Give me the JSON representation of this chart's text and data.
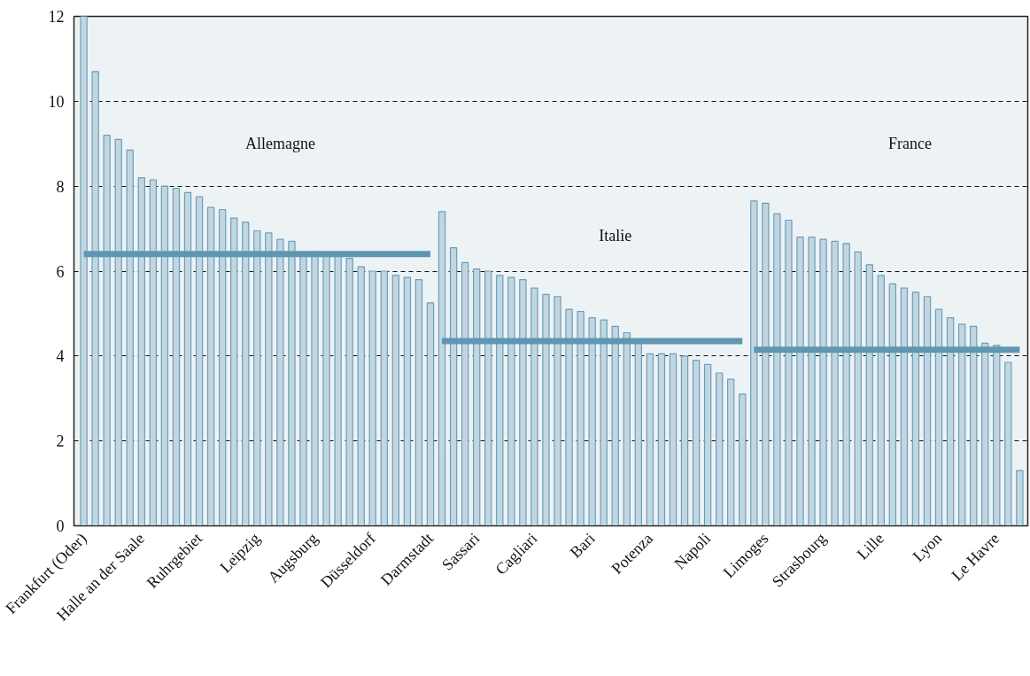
{
  "chart_data": {
    "type": "bar",
    "categories": [
      "Frankfurt (Oder)",
      null,
      null,
      null,
      null,
      "Halle an der Saale",
      null,
      null,
      null,
      null,
      "Ruhrgebiet",
      null,
      null,
      null,
      null,
      "Leipzig",
      null,
      null,
      null,
      null,
      "Augsburg",
      null,
      null,
      null,
      null,
      "Düsseldorf",
      null,
      null,
      null,
      null,
      "Darmstadt",
      null,
      null,
      null,
      "Sassari",
      null,
      null,
      null,
      null,
      "Cagliari",
      null,
      null,
      null,
      null,
      "Bari",
      null,
      null,
      null,
      null,
      "Potenza",
      null,
      null,
      null,
      null,
      "Napoli",
      null,
      null,
      null,
      null,
      "Limoges",
      null,
      null,
      null,
      null,
      "Strasbourg",
      null,
      null,
      null,
      null,
      "Lille",
      null,
      null,
      null,
      null,
      "Lyon",
      null,
      null,
      null,
      null,
      "Le Havre",
      null,
      null
    ],
    "series": [
      {
        "color": "#c2d6e2",
        "values": [
          12,
          10.7,
          9.2,
          9.1,
          8.85,
          8.2,
          8.15,
          8.0,
          7.95,
          7.85,
          7.75,
          7.5,
          7.45,
          7.25,
          7.15,
          6.95,
          6.9,
          6.75,
          6.7,
          6.45,
          6.45,
          6.4,
          6.35,
          6.3,
          6.1,
          6.0,
          6.0,
          5.9,
          5.85,
          5.8,
          5.25,
          7.4,
          6.55,
          6.2,
          6.05,
          6.0,
          5.9,
          5.85,
          5.8,
          5.6,
          5.45,
          5.4,
          5.1,
          5.05,
          4.9,
          4.85,
          4.7,
          4.55,
          4.3,
          4.05,
          4.05,
          4.05,
          4.0,
          3.9,
          3.8,
          3.6,
          3.45,
          3.1,
          7.65,
          7.6,
          7.35,
          7.2,
          6.8,
          6.8,
          6.75,
          6.7,
          6.65,
          6.45,
          6.15,
          5.9,
          5.7,
          5.6,
          5.5,
          5.4,
          5.1,
          4.9,
          4.75,
          4.7,
          4.3,
          4.25,
          3.85,
          1.3
        ]
      },
      {
        "type": "line",
        "color": "#5f96b1",
        "values": [
          6.4,
          6.4,
          6.4,
          6.4,
          6.4,
          6.4,
          6.4,
          6.4,
          6.4,
          6.4,
          6.4,
          6.4,
          6.4,
          6.4,
          6.4,
          6.4,
          6.4,
          6.4,
          6.4,
          6.4,
          6.4,
          6.4,
          6.4,
          6.4,
          6.4,
          6.4,
          6.4,
          6.4,
          6.4,
          6.4,
          6.4,
          null,
          null,
          null,
          null,
          null,
          null,
          null,
          null,
          null,
          null,
          null,
          null,
          null,
          null,
          null,
          null,
          null,
          null,
          null,
          null,
          null,
          null,
          null,
          null,
          null,
          null,
          null,
          null,
          null,
          null,
          null,
          null,
          null,
          null,
          null,
          null,
          null,
          null,
          null,
          null,
          null,
          null,
          null,
          null,
          null,
          null,
          null,
          null,
          null,
          null,
          null
        ]
      },
      {
        "type": "line",
        "color": "#5f96b1",
        "values": [
          null,
          null,
          null,
          null,
          null,
          null,
          null,
          null,
          null,
          null,
          null,
          null,
          null,
          null,
          null,
          null,
          null,
          null,
          null,
          null,
          null,
          null,
          null,
          null,
          null,
          null,
          null,
          null,
          null,
          null,
          null,
          4.35,
          4.35,
          4.35,
          4.35,
          4.35,
          4.35,
          4.35,
          4.35,
          4.35,
          4.35,
          4.35,
          4.35,
          4.35,
          4.35,
          4.35,
          4.35,
          4.35,
          4.35,
          4.35,
          4.35,
          4.35,
          4.35,
          4.35,
          4.35,
          4.35,
          4.35,
          4.35,
          null,
          null,
          null,
          null,
          null,
          null,
          null,
          null,
          null,
          null,
          null,
          null,
          null,
          null,
          null,
          null,
          null,
          null,
          null,
          null,
          null,
          null,
          null,
          null
        ]
      },
      {
        "type": "line",
        "color": "#5f96b1",
        "values": [
          null,
          null,
          null,
          null,
          null,
          null,
          null,
          null,
          null,
          null,
          null,
          null,
          null,
          null,
          null,
          null,
          null,
          null,
          null,
          null,
          null,
          null,
          null,
          null,
          null,
          null,
          null,
          null,
          null,
          null,
          null,
          null,
          null,
          null,
          null,
          null,
          null,
          null,
          null,
          null,
          null,
          null,
          null,
          null,
          null,
          null,
          null,
          null,
          null,
          null,
          null,
          null,
          null,
          null,
          null,
          null,
          null,
          null,
          4.15,
          4.15,
          4.15,
          4.15,
          4.15,
          4.15,
          4.15,
          4.15,
          4.15,
          4.15,
          4.15,
          4.15,
          4.15,
          4.15,
          4.15,
          4.15,
          4.15,
          4.15,
          4.15,
          4.15,
          4.15,
          4.15,
          4.15,
          4.15
        ]
      }
    ],
    "annotations": [
      "Allemagne",
      "Italie",
      "France"
    ],
    "ylim": [
      0,
      12
    ],
    "yticks": [
      0,
      2,
      4,
      6,
      8,
      10,
      12
    ],
    "grid": "y"
  }
}
